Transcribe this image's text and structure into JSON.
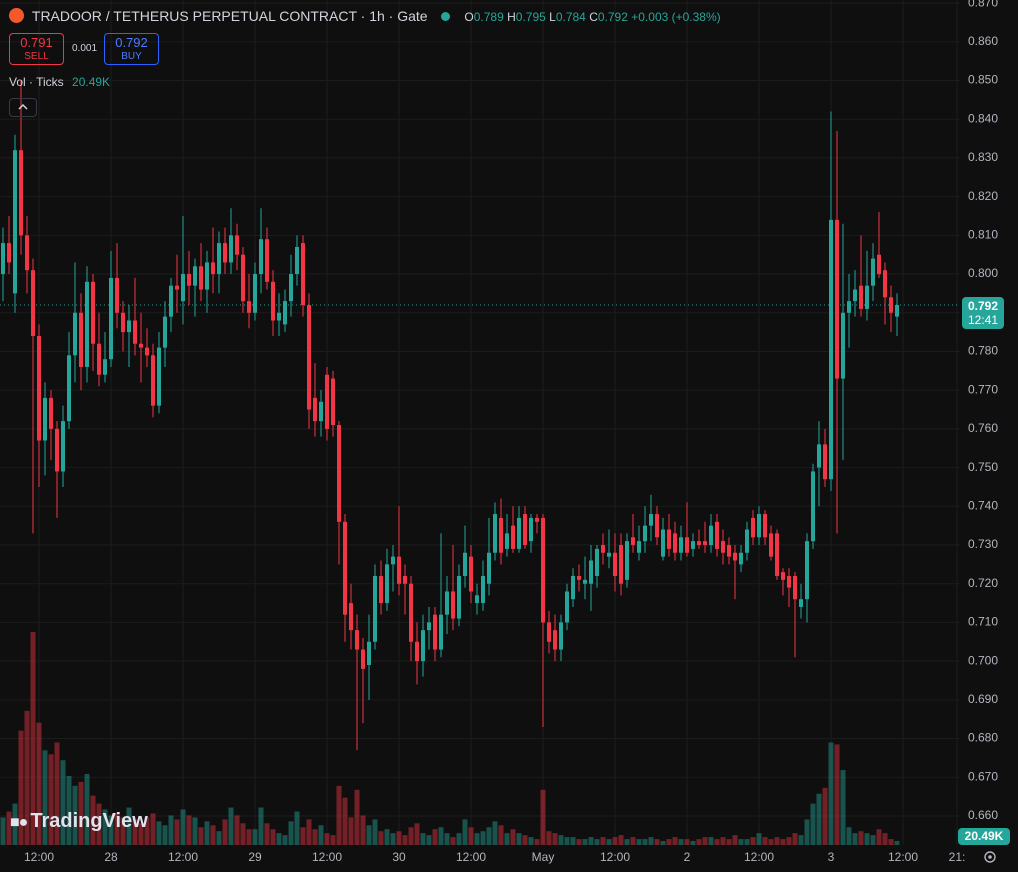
{
  "chart_data": {
    "type": "candlestick",
    "title": "TRADOOR / TETHERUS PERPETUAL CONTRACT · 1h · Gate",
    "legend": {
      "o_label": "O",
      "h_label": "H",
      "l_label": "L",
      "c_label": "C",
      "change": "+0.003 (+0.38%)"
    },
    "trade": {
      "sell": 0.791,
      "sell_label": "SELL",
      "spread": 0.001,
      "buy": 0.792,
      "buy_label": "BUY"
    },
    "volume_title": "Vol · Ticks",
    "volume_last_label": "20.49K",
    "countdown": "12:41",
    "brand": "TradingView",
    "up_color": "#26a69a",
    "down_color": "#f23645",
    "grid": true,
    "open": [
      0.8,
      0.808,
      0.795,
      0.832,
      0.81,
      0.801,
      0.784,
      0.757,
      0.768,
      0.76,
      0.749,
      0.762,
      0.779,
      0.79,
      0.776,
      0.798,
      0.782,
      0.774,
      0.778,
      0.799,
      0.79,
      0.785,
      0.788,
      0.782,
      0.781,
      0.779,
      0.766,
      0.781,
      0.789,
      0.797,
      0.793,
      0.8,
      0.797,
      0.802,
      0.796,
      0.803,
      0.8,
      0.808,
      0.803,
      0.81,
      0.805,
      0.793,
      0.79,
      0.8,
      0.809,
      0.798,
      0.788,
      0.787,
      0.793,
      0.8,
      0.808,
      0.792,
      0.768,
      0.762,
      0.774,
      0.773,
      0.761,
      0.736,
      0.715,
      0.708,
      0.703,
      0.699,
      0.705,
      0.722,
      0.715,
      0.725,
      0.727,
      0.722,
      0.72,
      0.705,
      0.7,
      0.708,
      0.712,
      0.703,
      0.712,
      0.718,
      0.711,
      0.722,
      0.727,
      0.715,
      0.715,
      0.72,
      0.728,
      0.737,
      0.729,
      0.735,
      0.729,
      0.738,
      0.731,
      0.737,
      0.737,
      0.71,
      0.708,
      0.703,
      0.71,
      0.716,
      0.722,
      0.72,
      0.72,
      0.722,
      0.73,
      0.727,
      0.728,
      0.73,
      0.721,
      0.732,
      0.728,
      0.731,
      0.735,
      0.738,
      0.727,
      0.734,
      0.733,
      0.728,
      0.732,
      0.729,
      0.731,
      0.731,
      0.73,
      0.736,
      0.731,
      0.73,
      0.728,
      0.725,
      0.728,
      0.737,
      0.732,
      0.738,
      0.733,
      0.733,
      0.723,
      0.722,
      0.722,
      0.714,
      0.716,
      0.731,
      0.75,
      0.756,
      0.747,
      0.814,
      0.773,
      0.79,
      0.793,
      0.797,
      0.791,
      0.797,
      0.805,
      0.801,
      0.794,
      0.789
    ],
    "high": [
      0.812,
      0.815,
      0.836,
      0.85,
      0.815,
      0.804,
      0.787,
      0.772,
      0.77,
      0.762,
      0.766,
      0.785,
      0.803,
      0.795,
      0.802,
      0.8,
      0.79,
      0.785,
      0.806,
      0.808,
      0.793,
      0.792,
      0.799,
      0.79,
      0.786,
      0.782,
      0.785,
      0.793,
      0.799,
      0.805,
      0.815,
      0.806,
      0.804,
      0.808,
      0.806,
      0.812,
      0.811,
      0.812,
      0.817,
      0.813,
      0.807,
      0.8,
      0.803,
      0.817,
      0.812,
      0.801,
      0.795,
      0.796,
      0.805,
      0.81,
      0.81,
      0.795,
      0.777,
      0.77,
      0.776,
      0.775,
      0.762,
      0.738,
      0.72,
      0.712,
      0.706,
      0.712,
      0.725,
      0.726,
      0.729,
      0.73,
      0.74,
      0.725,
      0.722,
      0.71,
      0.712,
      0.714,
      0.714,
      0.733,
      0.722,
      0.73,
      0.725,
      0.735,
      0.73,
      0.72,
      0.726,
      0.737,
      0.741,
      0.742,
      0.738,
      0.74,
      0.74,
      0.74,
      0.738,
      0.738,
      0.738,
      0.713,
      0.712,
      0.712,
      0.72,
      0.724,
      0.725,
      0.727,
      0.73,
      0.73,
      0.733,
      0.734,
      0.733,
      0.733,
      0.733,
      0.738,
      0.735,
      0.74,
      0.743,
      0.74,
      0.737,
      0.738,
      0.736,
      0.735,
      0.741,
      0.733,
      0.734,
      0.736,
      0.738,
      0.738,
      0.734,
      0.732,
      0.73,
      0.73,
      0.736,
      0.739,
      0.74,
      0.739,
      0.735,
      0.734,
      0.724,
      0.724,
      0.723,
      0.72,
      0.733,
      0.751,
      0.762,
      0.76,
      0.842,
      0.837,
      0.813,
      0.8,
      0.801,
      0.81,
      0.806,
      0.808,
      0.816,
      0.803,
      0.797,
      0.795
    ],
    "low": [
      0.793,
      0.8,
      0.79,
      0.805,
      0.795,
      0.733,
      0.745,
      0.748,
      0.752,
      0.737,
      0.745,
      0.76,
      0.772,
      0.77,
      0.772,
      0.775,
      0.771,
      0.772,
      0.776,
      0.786,
      0.78,
      0.776,
      0.779,
      0.772,
      0.776,
      0.763,
      0.764,
      0.776,
      0.785,
      0.79,
      0.787,
      0.792,
      0.789,
      0.793,
      0.79,
      0.795,
      0.795,
      0.8,
      0.8,
      0.801,
      0.79,
      0.786,
      0.788,
      0.795,
      0.796,
      0.784,
      0.784,
      0.785,
      0.789,
      0.797,
      0.789,
      0.76,
      0.758,
      0.758,
      0.757,
      0.758,
      0.725,
      0.705,
      0.703,
      0.677,
      0.684,
      0.69,
      0.703,
      0.712,
      0.713,
      0.718,
      0.717,
      0.712,
      0.7,
      0.694,
      0.696,
      0.703,
      0.7,
      0.701,
      0.707,
      0.708,
      0.709,
      0.719,
      0.715,
      0.712,
      0.713,
      0.717,
      0.726,
      0.725,
      0.727,
      0.728,
      0.728,
      0.729,
      0.728,
      0.733,
      0.683,
      0.702,
      0.7,
      0.7,
      0.708,
      0.714,
      0.718,
      0.716,
      0.713,
      0.719,
      0.725,
      0.724,
      0.718,
      0.717,
      0.719,
      0.728,
      0.726,
      0.728,
      0.731,
      0.73,
      0.726,
      0.727,
      0.726,
      0.726,
      0.727,
      0.727,
      0.729,
      0.728,
      0.728,
      0.727,
      0.725,
      0.725,
      0.716,
      0.723,
      0.726,
      0.73,
      0.73,
      0.73,
      0.726,
      0.721,
      0.717,
      0.714,
      0.701,
      0.711,
      0.71,
      0.729,
      0.74,
      0.745,
      0.744,
      0.733,
      0.752,
      0.781,
      0.789,
      0.789,
      0.788,
      0.793,
      0.799,
      0.787,
      0.785,
      0.784
    ],
    "close": [
      0.808,
      0.803,
      0.832,
      0.81,
      0.801,
      0.784,
      0.757,
      0.768,
      0.76,
      0.749,
      0.762,
      0.779,
      0.79,
      0.776,
      0.798,
      0.782,
      0.774,
      0.778,
      0.799,
      0.79,
      0.785,
      0.788,
      0.782,
      0.781,
      0.779,
      0.766,
      0.781,
      0.789,
      0.797,
      0.796,
      0.8,
      0.797,
      0.802,
      0.796,
      0.803,
      0.8,
      0.808,
      0.803,
      0.81,
      0.805,
      0.793,
      0.79,
      0.8,
      0.809,
      0.798,
      0.788,
      0.79,
      0.793,
      0.8,
      0.807,
      0.792,
      0.765,
      0.762,
      0.767,
      0.76,
      0.761,
      0.736,
      0.712,
      0.708,
      0.703,
      0.698,
      0.705,
      0.722,
      0.715,
      0.725,
      0.727,
      0.72,
      0.72,
      0.705,
      0.7,
      0.708,
      0.71,
      0.703,
      0.712,
      0.718,
      0.711,
      0.722,
      0.728,
      0.718,
      0.717,
      0.722,
      0.728,
      0.738,
      0.728,
      0.733,
      0.729,
      0.737,
      0.73,
      0.737,
      0.736,
      0.71,
      0.705,
      0.703,
      0.71,
      0.718,
      0.722,
      0.721,
      0.721,
      0.726,
      0.729,
      0.728,
      0.728,
      0.722,
      0.72,
      0.731,
      0.73,
      0.731,
      0.735,
      0.738,
      0.732,
      0.734,
      0.729,
      0.728,
      0.732,
      0.728,
      0.731,
      0.73,
      0.73,
      0.735,
      0.729,
      0.728,
      0.727,
      0.726,
      0.728,
      0.734,
      0.732,
      0.738,
      0.732,
      0.727,
      0.722,
      0.721,
      0.719,
      0.716,
      0.716,
      0.731,
      0.749,
      0.756,
      0.747,
      0.814,
      0.773,
      0.79,
      0.793,
      0.796,
      0.791,
      0.797,
      0.804,
      0.8,
      0.794,
      0.79,
      0.792
    ],
    "volume": [
      140000,
      170000,
      210000,
      580000,
      680000,
      1080000,
      620000,
      480000,
      460000,
      520000,
      430000,
      350000,
      300000,
      320000,
      360000,
      250000,
      210000,
      180000,
      150000,
      160000,
      140000,
      190000,
      130000,
      110000,
      140000,
      160000,
      120000,
      100000,
      150000,
      130000,
      180000,
      150000,
      140000,
      90000,
      120000,
      100000,
      70000,
      130000,
      190000,
      150000,
      110000,
      80000,
      80000,
      190000,
      110000,
      80000,
      60000,
      50000,
      120000,
      170000,
      90000,
      130000,
      80000,
      100000,
      60000,
      50000,
      300000,
      240000,
      140000,
      280000,
      150000,
      100000,
      130000,
      70000,
      80000,
      60000,
      70000,
      50000,
      90000,
      110000,
      60000,
      50000,
      80000,
      90000,
      60000,
      40000,
      60000,
      130000,
      90000,
      60000,
      70000,
      90000,
      120000,
      100000,
      60000,
      80000,
      60000,
      50000,
      40000,
      30000,
      280000,
      70000,
      60000,
      50000,
      40000,
      40000,
      30000,
      30000,
      40000,
      30000,
      40000,
      30000,
      40000,
      50000,
      30000,
      40000,
      30000,
      30000,
      40000,
      30000,
      20000,
      30000,
      40000,
      30000,
      30000,
      20000,
      30000,
      40000,
      40000,
      30000,
      40000,
      30000,
      50000,
      30000,
      30000,
      40000,
      60000,
      40000,
      30000,
      40000,
      30000,
      40000,
      60000,
      50000,
      130000,
      210000,
      260000,
      290000,
      520000,
      510000,
      380000,
      90000,
      60000,
      70000,
      60000,
      50000,
      80000,
      60000,
      30000,
      20490
    ],
    "xlim": [
      -0.5,
      159.5
    ],
    "xticks": [
      {
        "value": 6,
        "label": "12:00"
      },
      {
        "value": 18,
        "label": "28"
      },
      {
        "value": 30,
        "label": "12:00"
      },
      {
        "value": 42,
        "label": "29"
      },
      {
        "value": 54,
        "label": "12:00"
      },
      {
        "value": 66,
        "label": "30"
      },
      {
        "value": 78,
        "label": "12:00"
      },
      {
        "value": 90,
        "label": "May"
      },
      {
        "value": 102,
        "label": "12:00"
      },
      {
        "value": 114,
        "label": "2"
      },
      {
        "value": 126,
        "label": "12:00"
      },
      {
        "value": 138,
        "label": "3"
      },
      {
        "value": 150,
        "label": "12:00"
      },
      {
        "value": 159,
        "label": "21:"
      }
    ],
    "ylim": [
      0.6525,
      0.8708
    ],
    "yticks": [
      {
        "value": 0.87,
        "label": "0.870"
      },
      {
        "value": 0.86,
        "label": "0.860"
      },
      {
        "value": 0.85,
        "label": "0.850"
      },
      {
        "value": 0.84,
        "label": "0.840"
      },
      {
        "value": 0.83,
        "label": "0.830"
      },
      {
        "value": 0.82,
        "label": "0.820"
      },
      {
        "value": 0.81,
        "label": "0.810"
      },
      {
        "value": 0.8,
        "label": "0.800"
      },
      {
        "value": 0.79,
        "label": "0.790"
      },
      {
        "value": 0.78,
        "label": "0.780"
      },
      {
        "value": 0.77,
        "label": "0.770"
      },
      {
        "value": 0.76,
        "label": "0.760"
      },
      {
        "value": 0.75,
        "label": "0.750"
      },
      {
        "value": 0.74,
        "label": "0.740"
      },
      {
        "value": 0.73,
        "label": "0.730"
      },
      {
        "value": 0.72,
        "label": "0.720"
      },
      {
        "value": 0.71,
        "label": "0.710"
      },
      {
        "value": 0.7,
        "label": "0.700"
      },
      {
        "value": 0.69,
        "label": "0.690"
      },
      {
        "value": 0.68,
        "label": "0.680"
      },
      {
        "value": 0.67,
        "label": "0.670"
      },
      {
        "value": 0.66,
        "label": "0.660"
      }
    ]
  }
}
